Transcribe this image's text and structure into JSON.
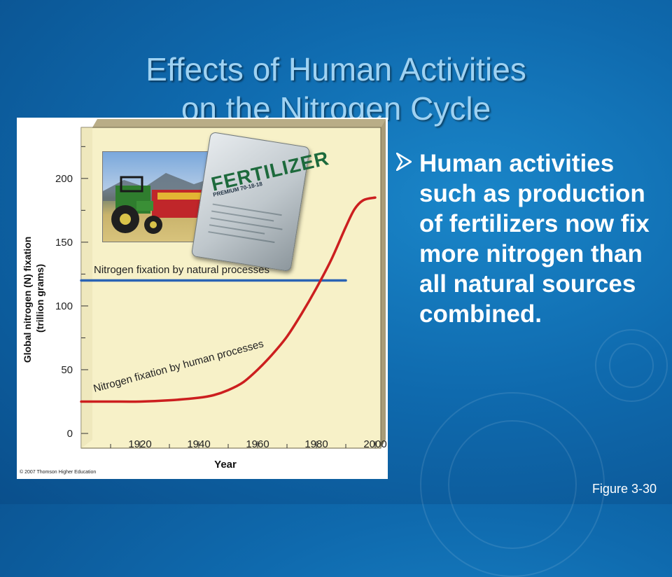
{
  "slide": {
    "title_line1": "Effects of Human Activities",
    "title_line2": "on the Nitrogen Cycle",
    "bullet": "Human activities such as production of fertilizers now fix more nitrogen than all natural sources combined.",
    "figure_label": "Figure 3-30",
    "copyright": "© 2007 Thomson Higher Education",
    "photo": {
      "bag_text": "FERTILIZER",
      "bag_subtext": "PREMIUM 70-18-18"
    },
    "colors": {
      "background": "#0f6aae",
      "title": "#9fd2f2",
      "bullet": "#ffffff"
    }
  },
  "chart_data": {
    "type": "line",
    "title": "",
    "xlabel": "Year",
    "ylabel": "Global nitrogen (N) fixation\n(trillion grams)",
    "xlim": [
      1900,
      2000
    ],
    "ylim": [
      0,
      240
    ],
    "x_ticks": [
      1920,
      1940,
      1960,
      1980,
      2000
    ],
    "y_ticks": [
      0,
      50,
      100,
      150,
      200
    ],
    "grid": false,
    "series": [
      {
        "name": "Nitrogen fixation by natural processes",
        "color": "#2a63b4",
        "x": [
          1900,
          1990
        ],
        "y": [
          120,
          120
        ]
      },
      {
        "name": "Nitrogen fixation by human processes",
        "color": "#cc1f1f",
        "x": [
          1900,
          1910,
          1920,
          1930,
          1940,
          1945,
          1950,
          1955,
          1960,
          1965,
          1970,
          1975,
          1980,
          1985,
          1990,
          1993,
          1996,
          2000
        ],
        "y": [
          25,
          25,
          25,
          26,
          28,
          30,
          34,
          40,
          50,
          62,
          76,
          94,
          114,
          136,
          162,
          176,
          183,
          185
        ]
      }
    ]
  }
}
